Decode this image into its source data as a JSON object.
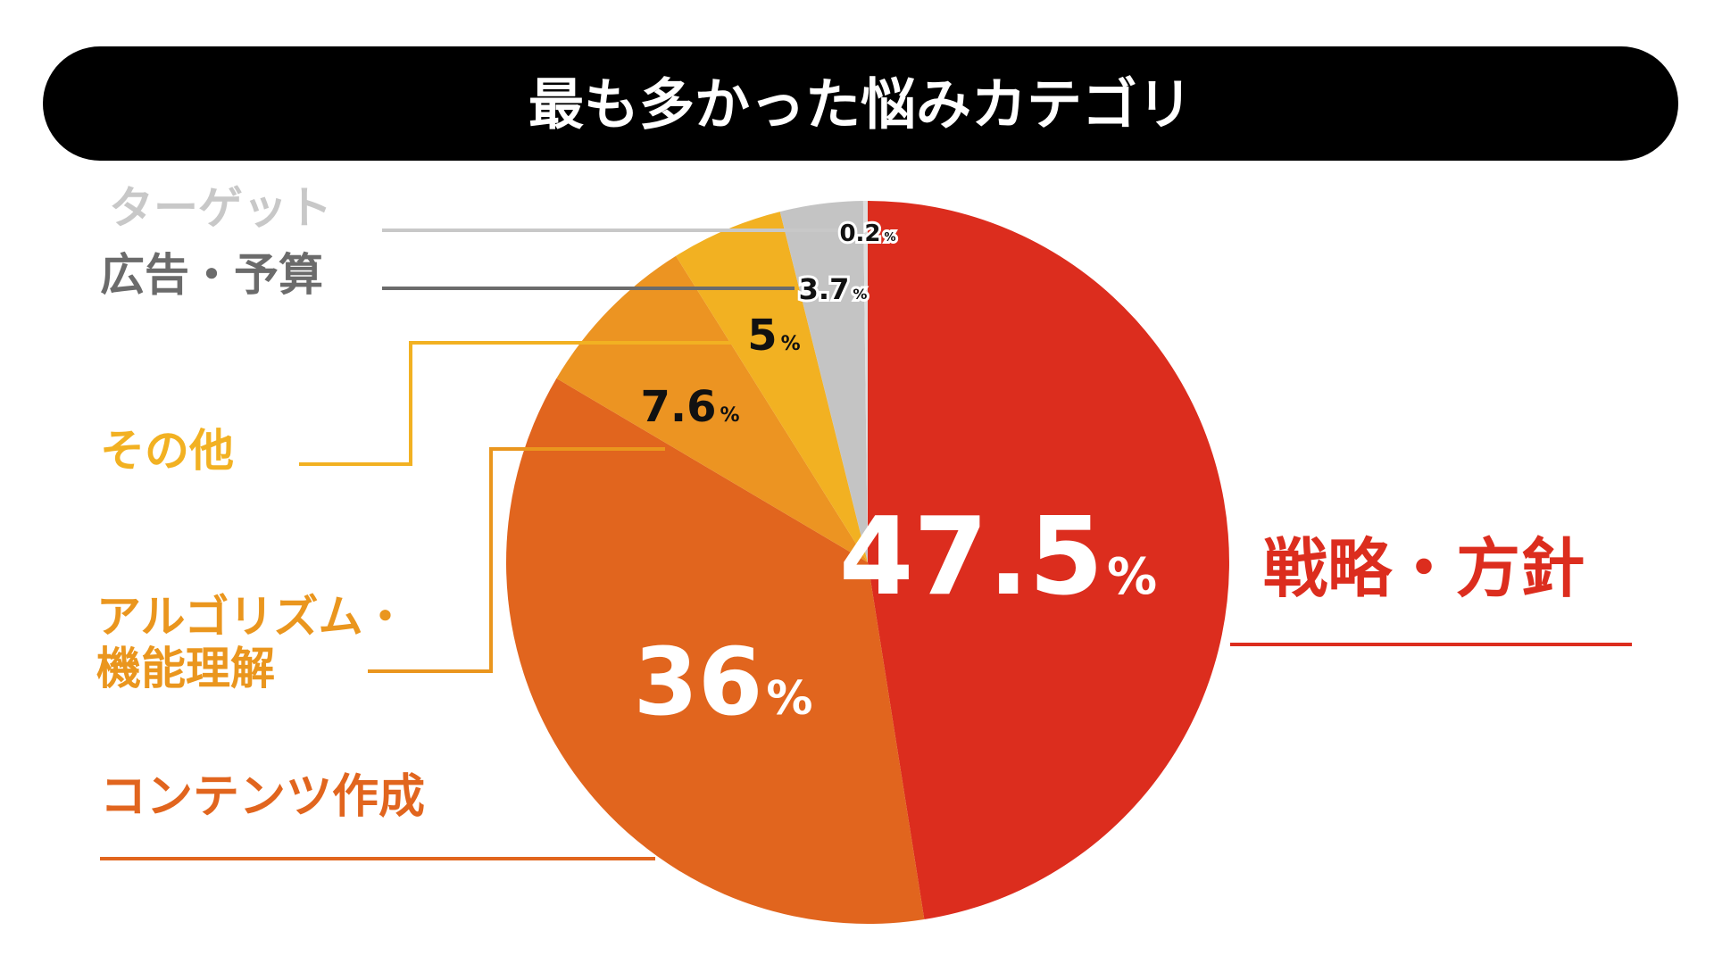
{
  "title": "最も多かった悩みカテゴリ",
  "chart_data": {
    "type": "pie",
    "title": "最も多かった悩みカテゴリ",
    "unit": "%",
    "slices": [
      {
        "label": "戦略・方針",
        "value_text": "47.5",
        "value": 47.5,
        "color": "#DC2D1E"
      },
      {
        "label": "コンテンツ作成",
        "value_text": "36",
        "value": 36,
        "color": "#E1651E"
      },
      {
        "label": "アルゴリズム・機能理解",
        "value_text": "7.6",
        "value": 7.6,
        "color": "#EC9422"
      },
      {
        "label": "その他",
        "value_text": "5",
        "value": 5,
        "color": "#F2B122"
      },
      {
        "label": "広告・予算",
        "value_text": "3.7",
        "value": 3.7,
        "color": "#C4C4C4"
      },
      {
        "label": "ターゲット",
        "value_text": "0.2",
        "value": 0.2,
        "color": "#DEDEDE"
      }
    ],
    "direction": "clockwise-from-top"
  },
  "colors": {
    "title_bar": "#000000",
    "title_text": "#FFFFFF",
    "pct_dark": "#111111",
    "pct_light": "#FFFFFF",
    "label_gray_dark": "#6B6B6B",
    "label_gray_light": "#C8C8C8"
  }
}
